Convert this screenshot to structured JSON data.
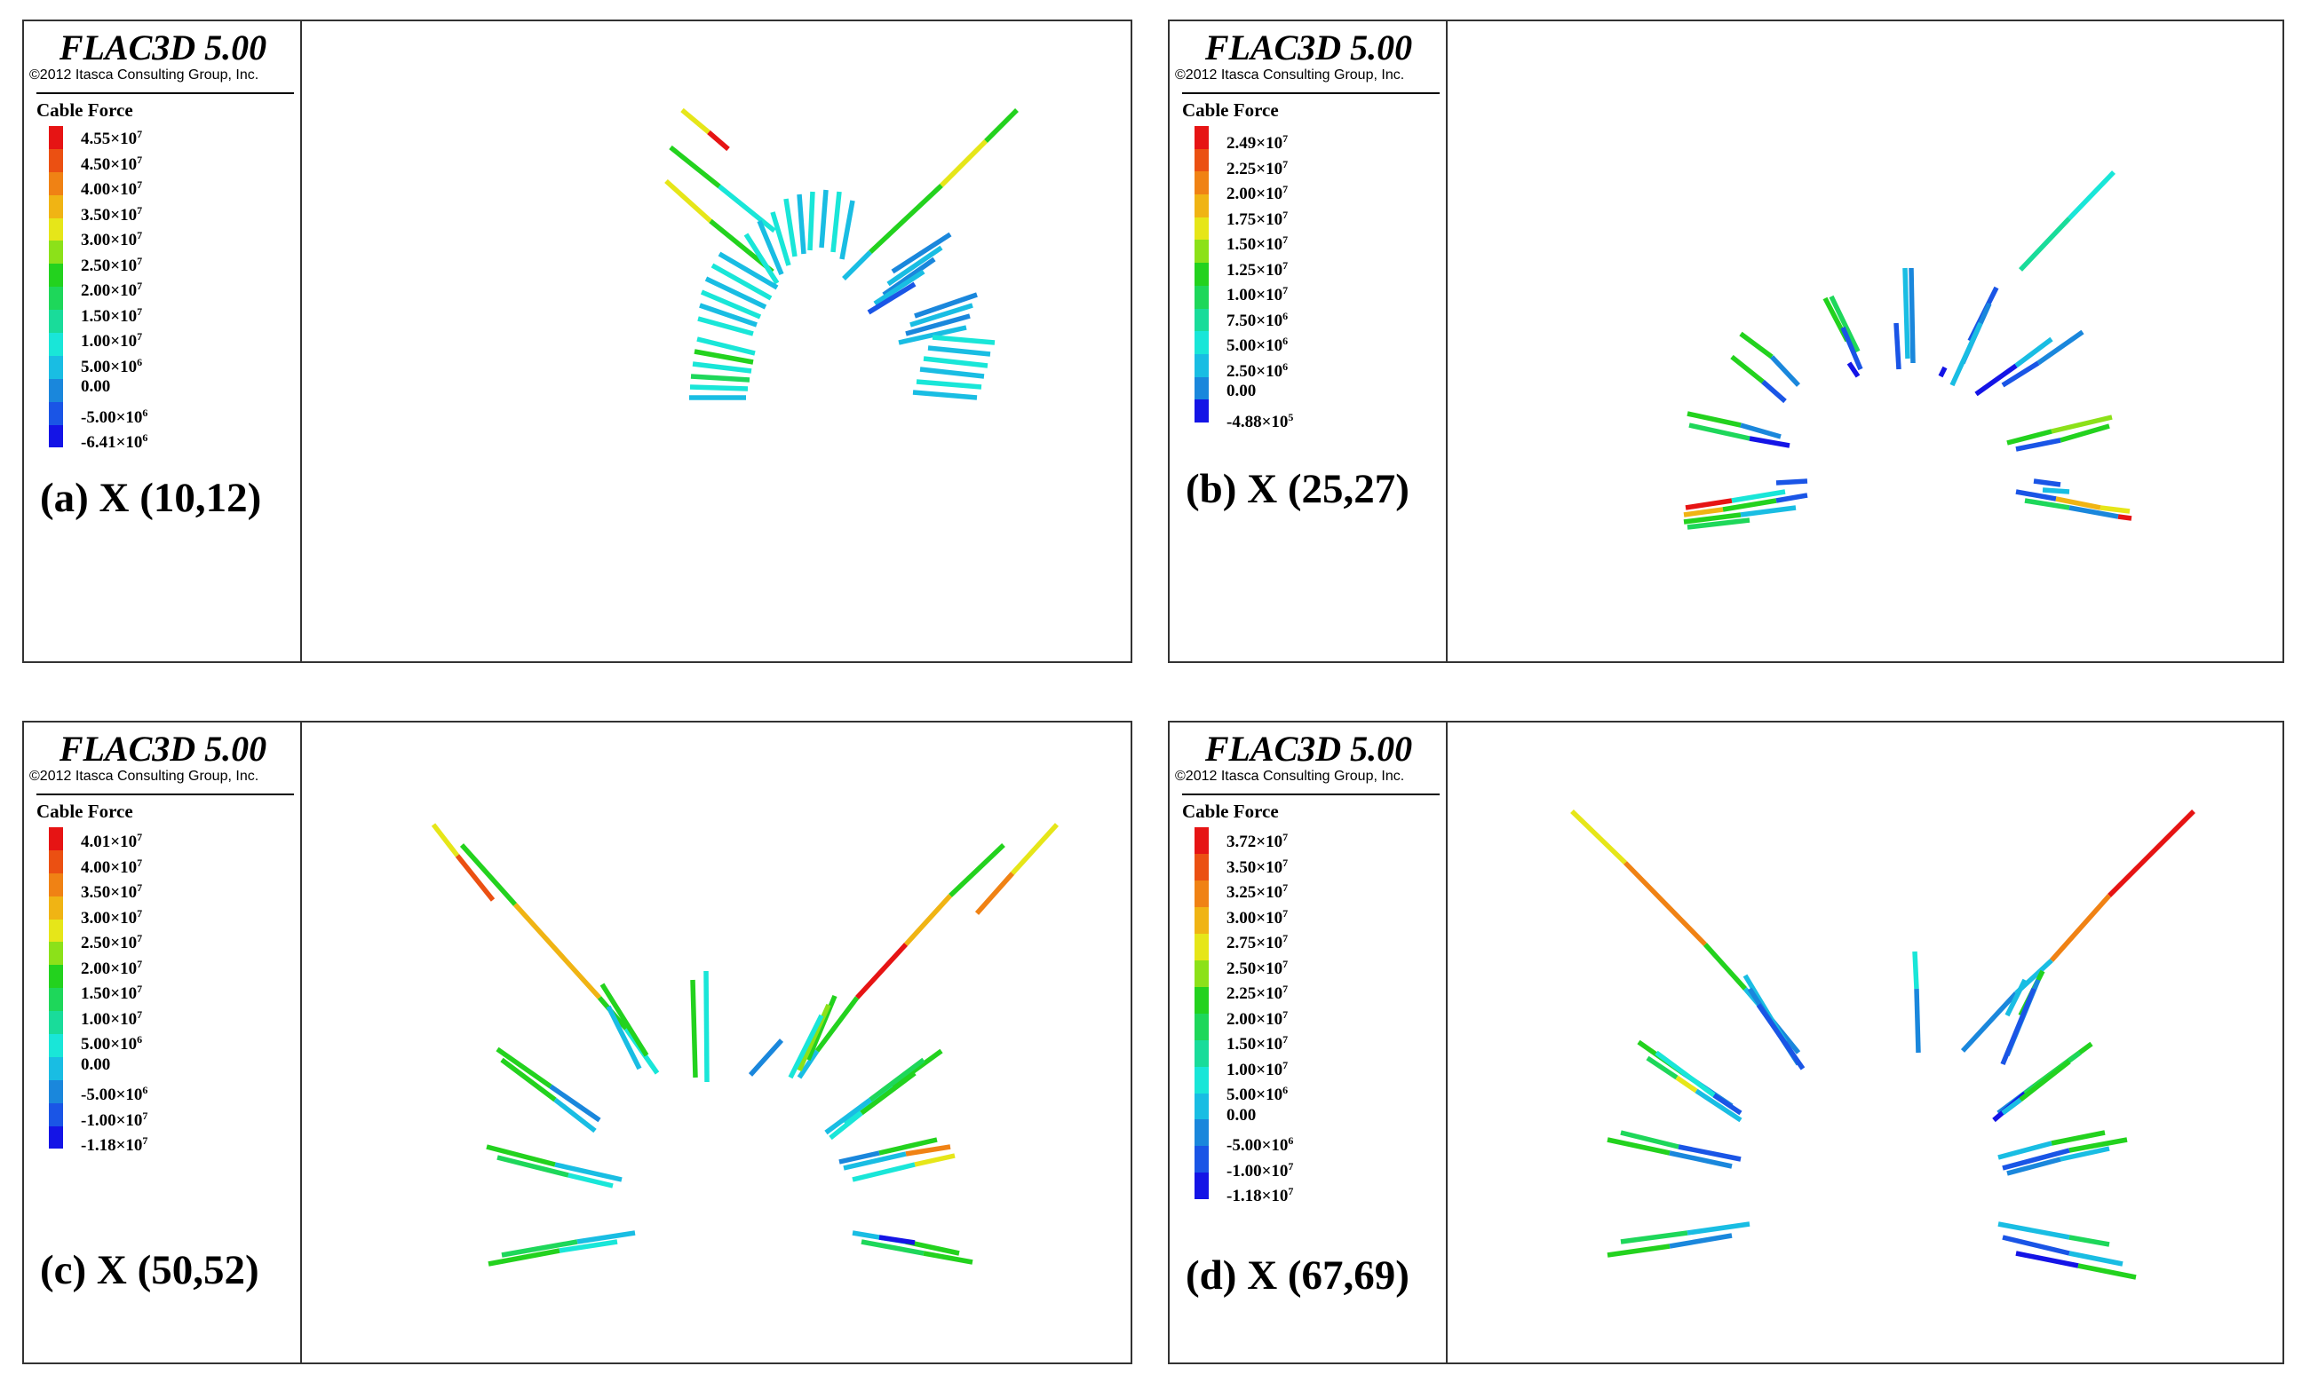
{
  "palette": [
    "#1414e6",
    "#1a55e6",
    "#1a87dc",
    "#19bde3",
    "#19e6d8",
    "#19dc9a",
    "#1ed75a",
    "#23d21e",
    "#8ce119",
    "#e6e619",
    "#f0b414",
    "#f08214",
    "#eb5012",
    "#e61414"
  ],
  "panels": [
    {
      "software": "FLAC3D 5.00",
      "copyright": "©2012 Itasca Consulting Group, Inc.",
      "legend_title": "Cable Force",
      "caption": "(a) X (10,12)",
      "scale": [
        {
          "mant": "4.55",
          "exp": "7"
        },
        {
          "mant": "4.50",
          "exp": "7"
        },
        {
          "mant": "4.00",
          "exp": "7"
        },
        {
          "mant": "3.50",
          "exp": "7"
        },
        {
          "mant": "3.00",
          "exp": "7"
        },
        {
          "mant": "2.50",
          "exp": "7"
        },
        {
          "mant": "2.00",
          "exp": "7"
        },
        {
          "mant": "1.50",
          "exp": "7"
        },
        {
          "mant": "1.00",
          "exp": "7"
        },
        {
          "mant": "5.00",
          "exp": "6"
        },
        {
          "mant": "0.00",
          "exp": ""
        },
        {
          "mant": "-5.00",
          "exp": "6"
        },
        {
          "mant": "-6.41",
          "exp": "6"
        }
      ],
      "bar_colors": [
        "#e61414",
        "#eb5012",
        "#f08214",
        "#f0b414",
        "#e6e619",
        "#8ce119",
        "#23d21e",
        "#1ed75a",
        "#19dc9a",
        "#19e6d8",
        "#19bde3",
        "#1a87dc",
        "#1a55e6",
        "#1414e6"
      ]
    },
    {
      "software": "FLAC3D 5.00",
      "copyright": "©2012 Itasca Consulting Group, Inc.",
      "legend_title": "Cable Force",
      "caption": "(b) X (25,27)",
      "scale": [
        {
          "mant": "2.49",
          "exp": "7"
        },
        {
          "mant": "2.25",
          "exp": "7"
        },
        {
          "mant": "2.00",
          "exp": "7"
        },
        {
          "mant": "1.75",
          "exp": "7"
        },
        {
          "mant": "1.50",
          "exp": "7"
        },
        {
          "mant": "1.25",
          "exp": "7"
        },
        {
          "mant": "1.00",
          "exp": "7"
        },
        {
          "mant": "7.50",
          "exp": "6"
        },
        {
          "mant": "5.00",
          "exp": "6"
        },
        {
          "mant": "2.50",
          "exp": "6"
        },
        {
          "mant": "0.00",
          "exp": ""
        },
        {
          "mant": "-4.88",
          "exp": "5"
        }
      ],
      "bar_colors": [
        "#e61414",
        "#eb5012",
        "#f08214",
        "#f0b414",
        "#e6e619",
        "#8ce119",
        "#23d21e",
        "#1ed75a",
        "#19dc9a",
        "#19e6d8",
        "#19bde3",
        "#1a87dc",
        "#1414e6"
      ]
    },
    {
      "software": "FLAC3D 5.00",
      "copyright": "©2012 Itasca Consulting Group, Inc.",
      "legend_title": "Cable Force",
      "caption": "(c) X (50,52)",
      "scale": [
        {
          "mant": "4.01",
          "exp": "7"
        },
        {
          "mant": "4.00",
          "exp": "7"
        },
        {
          "mant": "3.50",
          "exp": "7"
        },
        {
          "mant": "3.00",
          "exp": "7"
        },
        {
          "mant": "2.50",
          "exp": "7"
        },
        {
          "mant": "2.00",
          "exp": "7"
        },
        {
          "mant": "1.50",
          "exp": "7"
        },
        {
          "mant": "1.00",
          "exp": "7"
        },
        {
          "mant": "5.00",
          "exp": "6"
        },
        {
          "mant": "0.00",
          "exp": ""
        },
        {
          "mant": "-5.00",
          "exp": "6"
        },
        {
          "mant": "-1.00",
          "exp": "7"
        },
        {
          "mant": "-1.18",
          "exp": "7"
        }
      ],
      "bar_colors": [
        "#e61414",
        "#eb5012",
        "#f08214",
        "#f0b414",
        "#e6e619",
        "#8ce119",
        "#23d21e",
        "#1ed75a",
        "#19dc9a",
        "#19e6d8",
        "#19bde3",
        "#1a87dc",
        "#1a55e6",
        "#1414e6"
      ]
    },
    {
      "software": "FLAC3D 5.00",
      "copyright": "©2012 Itasca Consulting Group, Inc.",
      "legend_title": "Cable Force",
      "caption": "(d) X (67,69)",
      "scale": [
        {
          "mant": "3.72",
          "exp": "7"
        },
        {
          "mant": "3.50",
          "exp": "7"
        },
        {
          "mant": "3.25",
          "exp": "7"
        },
        {
          "mant": "3.00",
          "exp": "7"
        },
        {
          "mant": "2.75",
          "exp": "7"
        },
        {
          "mant": "2.50",
          "exp": "7"
        },
        {
          "mant": "2.25",
          "exp": "7"
        },
        {
          "mant": "2.00",
          "exp": "7"
        },
        {
          "mant": "1.50",
          "exp": "7"
        },
        {
          "mant": "1.00",
          "exp": "7"
        },
        {
          "mant": "5.00",
          "exp": "6"
        },
        {
          "mant": "0.00",
          "exp": ""
        },
        {
          "mant": "-5.00",
          "exp": "6"
        },
        {
          "mant": "-1.00",
          "exp": "7"
        },
        {
          "mant": "-1.18",
          "exp": "7"
        }
      ],
      "bar_colors": [
        "#e61414",
        "#eb5012",
        "#f08214",
        "#f0b414",
        "#e6e619",
        "#8ce119",
        "#23d21e",
        "#1ed75a",
        "#19dc9a",
        "#19e6d8",
        "#19bde3",
        "#1a87dc",
        "#1a55e6",
        "#1414e6"
      ]
    }
  ]
}
